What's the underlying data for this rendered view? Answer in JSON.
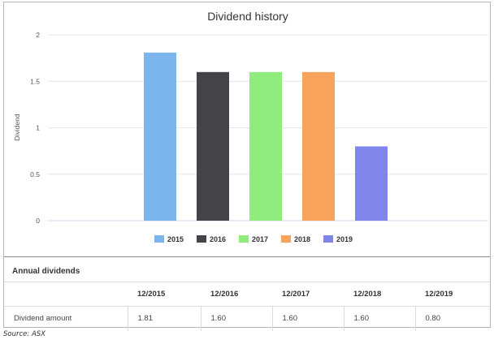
{
  "chart_data": {
    "type": "bar",
    "title": "Dividend history",
    "xlabel": "",
    "ylabel": "Dividend",
    "ylim": [
      0,
      2
    ],
    "yticks": [
      0,
      0.5,
      1,
      1.5,
      2
    ],
    "ytick_labels": [
      "0",
      "0.5",
      "1",
      "1.5",
      "2"
    ],
    "grid": true,
    "legend_position": "bottom",
    "series": [
      {
        "name": "2015",
        "value": 1.81,
        "color": "#7cb5ec"
      },
      {
        "name": "2016",
        "value": 1.6,
        "color": "#434348"
      },
      {
        "name": "2017",
        "value": 1.6,
        "color": "#90ed7d"
      },
      {
        "name": "2018",
        "value": 1.6,
        "color": "#f7a35c"
      },
      {
        "name": "2019",
        "value": 0.8,
        "color": "#8085e9"
      }
    ]
  },
  "table": {
    "title": "Annual dividends",
    "columns": [
      "",
      "12/2015",
      "12/2016",
      "12/2017",
      "12/2018",
      "12/2019"
    ],
    "rows": [
      [
        "Dividend amount",
        "1.81",
        "1.60",
        "1.60",
        "1.60",
        "0.80"
      ]
    ]
  },
  "source": "Source: ASX"
}
